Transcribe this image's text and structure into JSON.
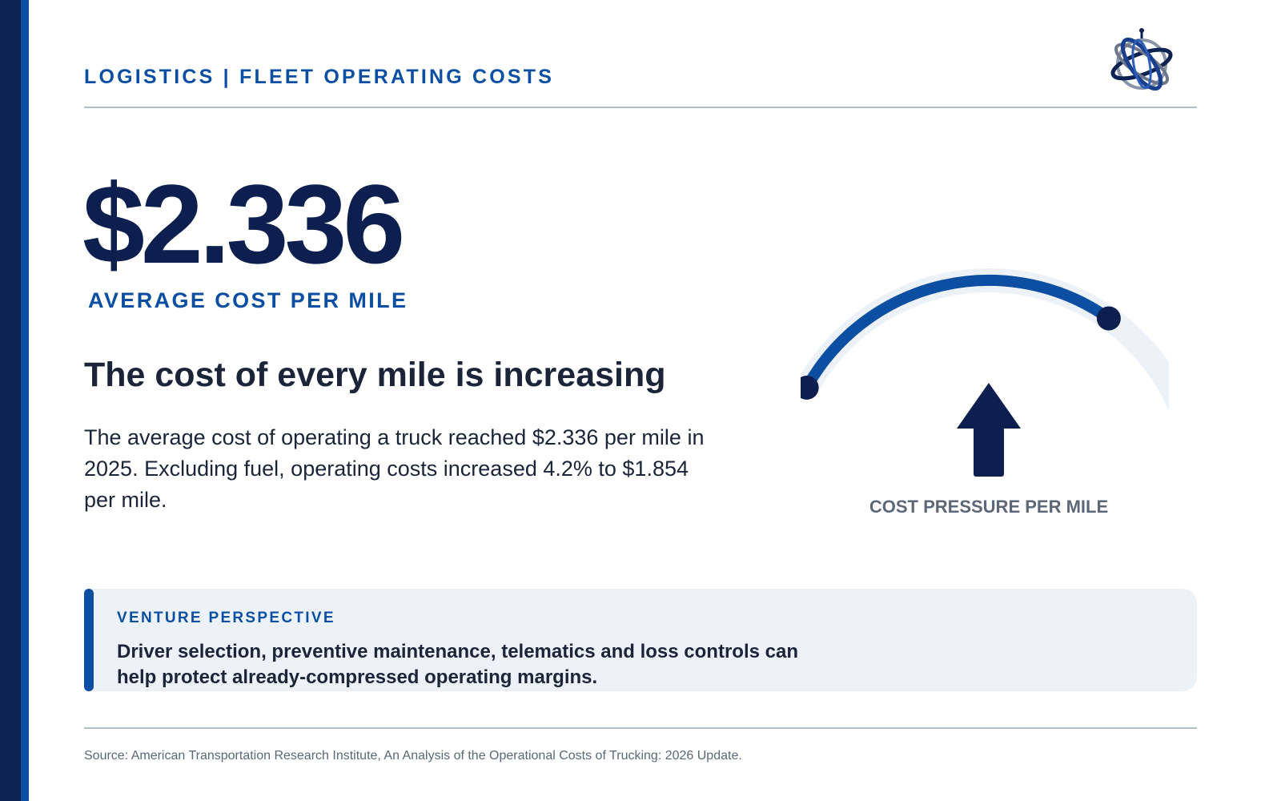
{
  "header": {
    "title": "LOGISTICS | FLEET OPERATING COSTS",
    "logo_icon": "globe-orbit-icon"
  },
  "hero": {
    "value": "$2.336",
    "label": "AVERAGE COST PER MILE"
  },
  "headline": "The cost of every mile is increasing",
  "body": "The average cost of operating a truck reached $2.336 per mile in 2025. Excluding fuel, operating costs increased 4.2% to $1.854 per mile.",
  "gauge": {
    "label": "COST PRESSURE PER MILE",
    "arrow_icon": "arrow-up-icon",
    "level": 0.74
  },
  "perspective": {
    "label": "VENTURE PERSPECTIVE",
    "text": "Driver selection, preventive maintenance, telematics and loss controls can help protect already-compressed operating margins."
  },
  "source": "Source: American Transportation Research Institute, An Analysis of the Operational Costs of Trucking: 2026 Update.",
  "colors": {
    "navy": "#0c1f4f",
    "accent_blue": "#0b4ea2",
    "gauge_track": "#edf2f9",
    "panel_bg": "#edf2f9",
    "muted_text": "#5c6778"
  }
}
